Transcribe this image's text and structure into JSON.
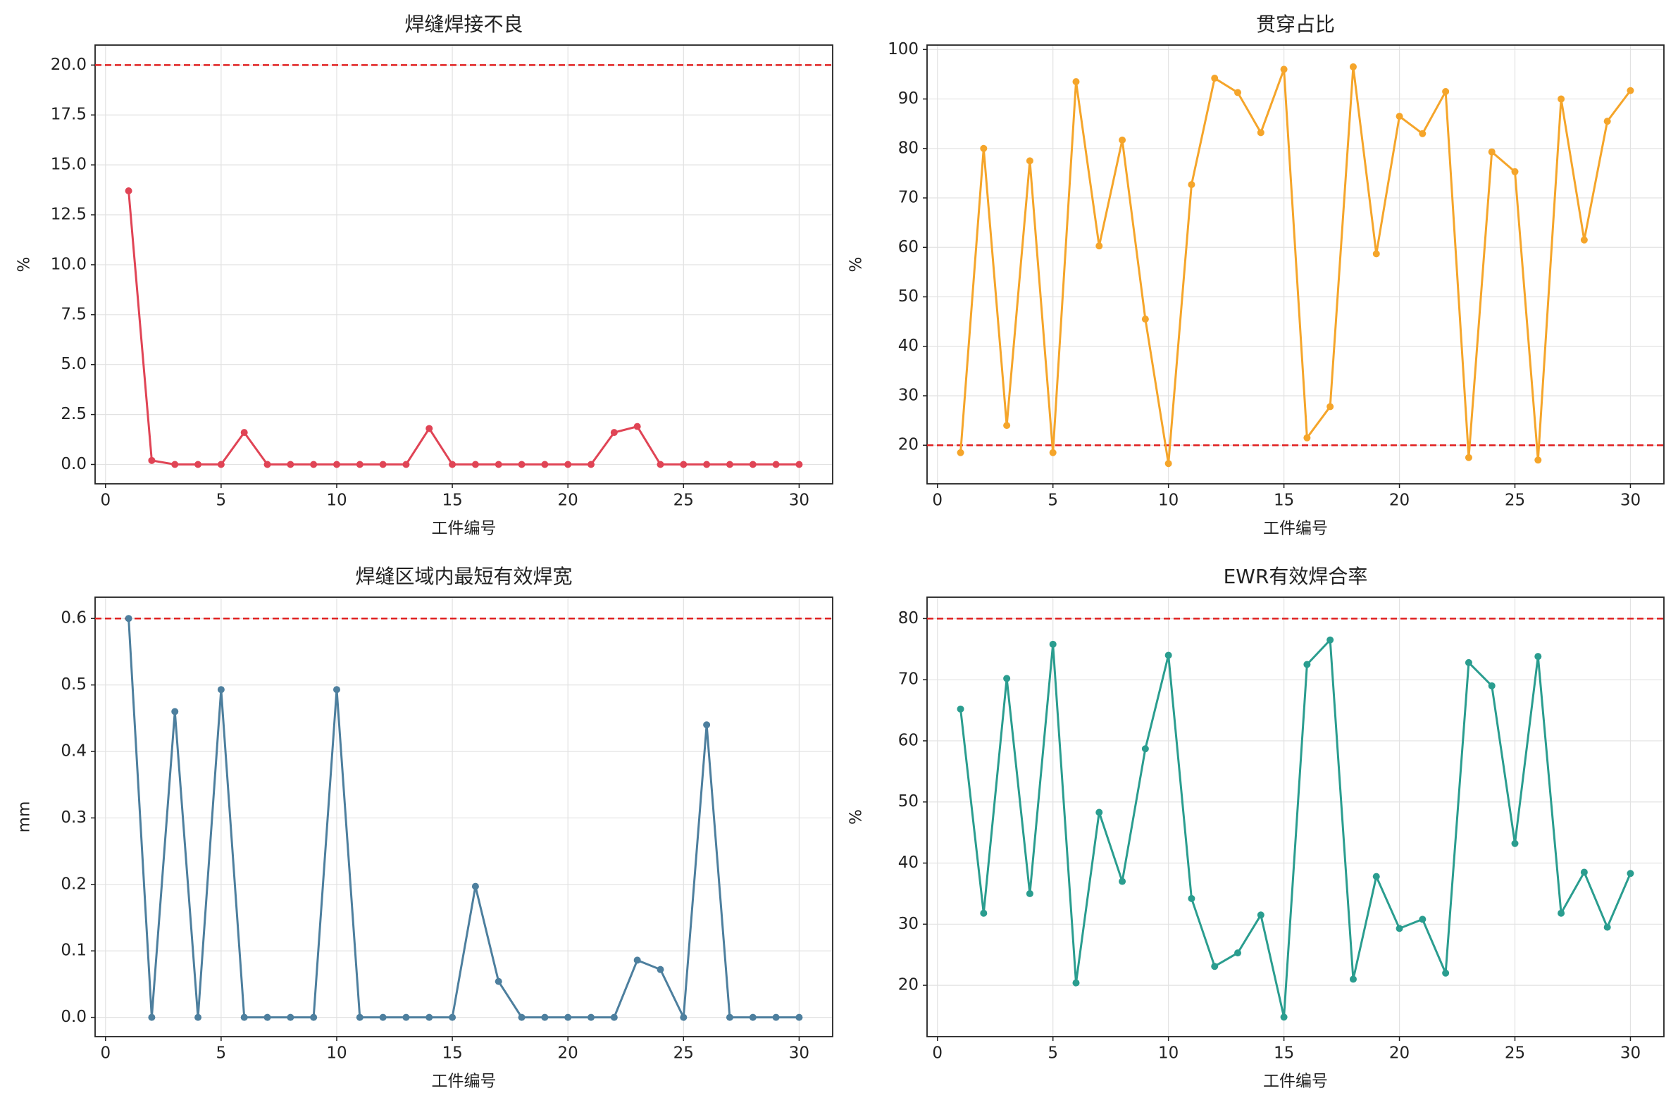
{
  "chart_data": [
    {
      "type": "line",
      "title": "焊缝焊接不良",
      "xlabel": "工件编号",
      "ylabel": "%",
      "x": [
        1,
        2,
        3,
        4,
        5,
        6,
        7,
        8,
        9,
        10,
        11,
        12,
        13,
        14,
        15,
        16,
        17,
        18,
        19,
        20,
        21,
        22,
        23,
        24,
        25,
        26,
        27,
        28,
        29,
        30
      ],
      "series": [
        {
          "color": "#e04455",
          "values": [
            13.7,
            0.2,
            0,
            0,
            0,
            1.6,
            0,
            0,
            0,
            0,
            0,
            0,
            0,
            1.8,
            0,
            0,
            0,
            0,
            0,
            0,
            0,
            1.6,
            1.9,
            0,
            0,
            0,
            0,
            0,
            0,
            0
          ]
        }
      ],
      "threshold": 20,
      "threshold_color": "#e02020",
      "xlim": [
        -0.45,
        31.45
      ],
      "ylim": [
        -0.97,
        21.0
      ],
      "xticks": [
        0,
        5,
        10,
        15,
        20,
        25,
        30
      ],
      "yticks": [
        {
          "value": 0,
          "label": "0.0"
        },
        2.5,
        {
          "value": 5,
          "label": "5.0"
        },
        7.5,
        {
          "value": 10,
          "label": "10.0"
        },
        12.5,
        {
          "value": 15,
          "label": "15.0"
        },
        17.5,
        {
          "value": 20,
          "label": "20.0"
        }
      ],
      "grid": true
    },
    {
      "type": "line",
      "title": "贯穿占比",
      "xlabel": "工件编号",
      "ylabel": "%",
      "x": [
        1,
        2,
        3,
        4,
        5,
        6,
        7,
        8,
        9,
        10,
        11,
        12,
        13,
        14,
        15,
        16,
        17,
        18,
        19,
        20,
        21,
        22,
        23,
        24,
        25,
        26,
        27,
        28,
        29,
        30
      ],
      "series": [
        {
          "color": "#f5a52a",
          "values": [
            18.5,
            80,
            24,
            77.5,
            18.5,
            93.5,
            60.3,
            81.7,
            45.5,
            16.3,
            72.7,
            94.2,
            91.3,
            83.2,
            96,
            21.5,
            27.8,
            96.5,
            58.7,
            86.5,
            83,
            91.5,
            17.5,
            79.3,
            75.3,
            17,
            90,
            61.5,
            85.5,
            91.7
          ]
        }
      ],
      "threshold": 20,
      "threshold_color": "#e02020",
      "xlim": [
        -0.45,
        31.45
      ],
      "ylim": [
        12.2,
        100.9
      ],
      "xticks": [
        0,
        5,
        10,
        15,
        20,
        25,
        30
      ],
      "yticks": [
        20,
        30,
        40,
        50,
        60,
        70,
        80,
        90,
        100
      ],
      "grid": true
    },
    {
      "type": "line",
      "title": "焊缝区域内最短有效焊宽",
      "xlabel": "工件编号",
      "ylabel": "mm",
      "x": [
        1,
        2,
        3,
        4,
        5,
        6,
        7,
        8,
        9,
        10,
        11,
        12,
        13,
        14,
        15,
        16,
        17,
        18,
        19,
        20,
        21,
        22,
        23,
        24,
        25,
        26,
        27,
        28,
        29,
        30
      ],
      "series": [
        {
          "color": "#4d7f9e",
          "values": [
            0.6,
            0,
            0.46,
            0,
            0.493,
            0,
            0,
            0,
            0,
            0.493,
            0,
            0,
            0,
            0,
            0,
            0.197,
            0.054,
            0,
            0,
            0,
            0,
            0,
            0.086,
            0.072,
            0,
            0.44,
            0,
            0,
            0,
            0
          ]
        }
      ],
      "threshold": 0.6,
      "threshold_color": "#e02020",
      "xlim": [
        -0.45,
        31.45
      ],
      "ylim": [
        -0.029,
        0.632
      ],
      "xticks": [
        0,
        5,
        10,
        15,
        20,
        25,
        30
      ],
      "yticks": [
        {
          "value": 0,
          "label": "0.0"
        },
        0.1,
        0.2,
        0.3,
        0.4,
        0.5,
        0.6
      ],
      "grid": true
    },
    {
      "type": "line",
      "title": "EWR有效焊合率",
      "xlabel": "工件编号",
      "ylabel": "%",
      "x": [
        1,
        2,
        3,
        4,
        5,
        6,
        7,
        8,
        9,
        10,
        11,
        12,
        13,
        14,
        15,
        16,
        17,
        18,
        19,
        20,
        21,
        22,
        23,
        24,
        25,
        26,
        27,
        28,
        29,
        30
      ],
      "series": [
        {
          "color": "#2a9d8f",
          "values": [
            65.2,
            31.8,
            70.2,
            35,
            75.8,
            20.4,
            48.3,
            37,
            58.7,
            74,
            34.2,
            23.1,
            25.3,
            31.5,
            14.8,
            72.5,
            76.5,
            21,
            37.8,
            29.3,
            30.8,
            22,
            72.8,
            69,
            43.2,
            73.8,
            31.8,
            38.5,
            29.5,
            38.3
          ]
        }
      ],
      "threshold": 80,
      "threshold_color": "#e02020",
      "xlim": [
        -0.45,
        31.45
      ],
      "ylim": [
        11.6,
        83.5
      ],
      "xticks": [
        0,
        5,
        10,
        15,
        20,
        25,
        30
      ],
      "yticks": [
        20,
        30,
        40,
        50,
        60,
        70,
        80
      ],
      "grid": true
    }
  ]
}
